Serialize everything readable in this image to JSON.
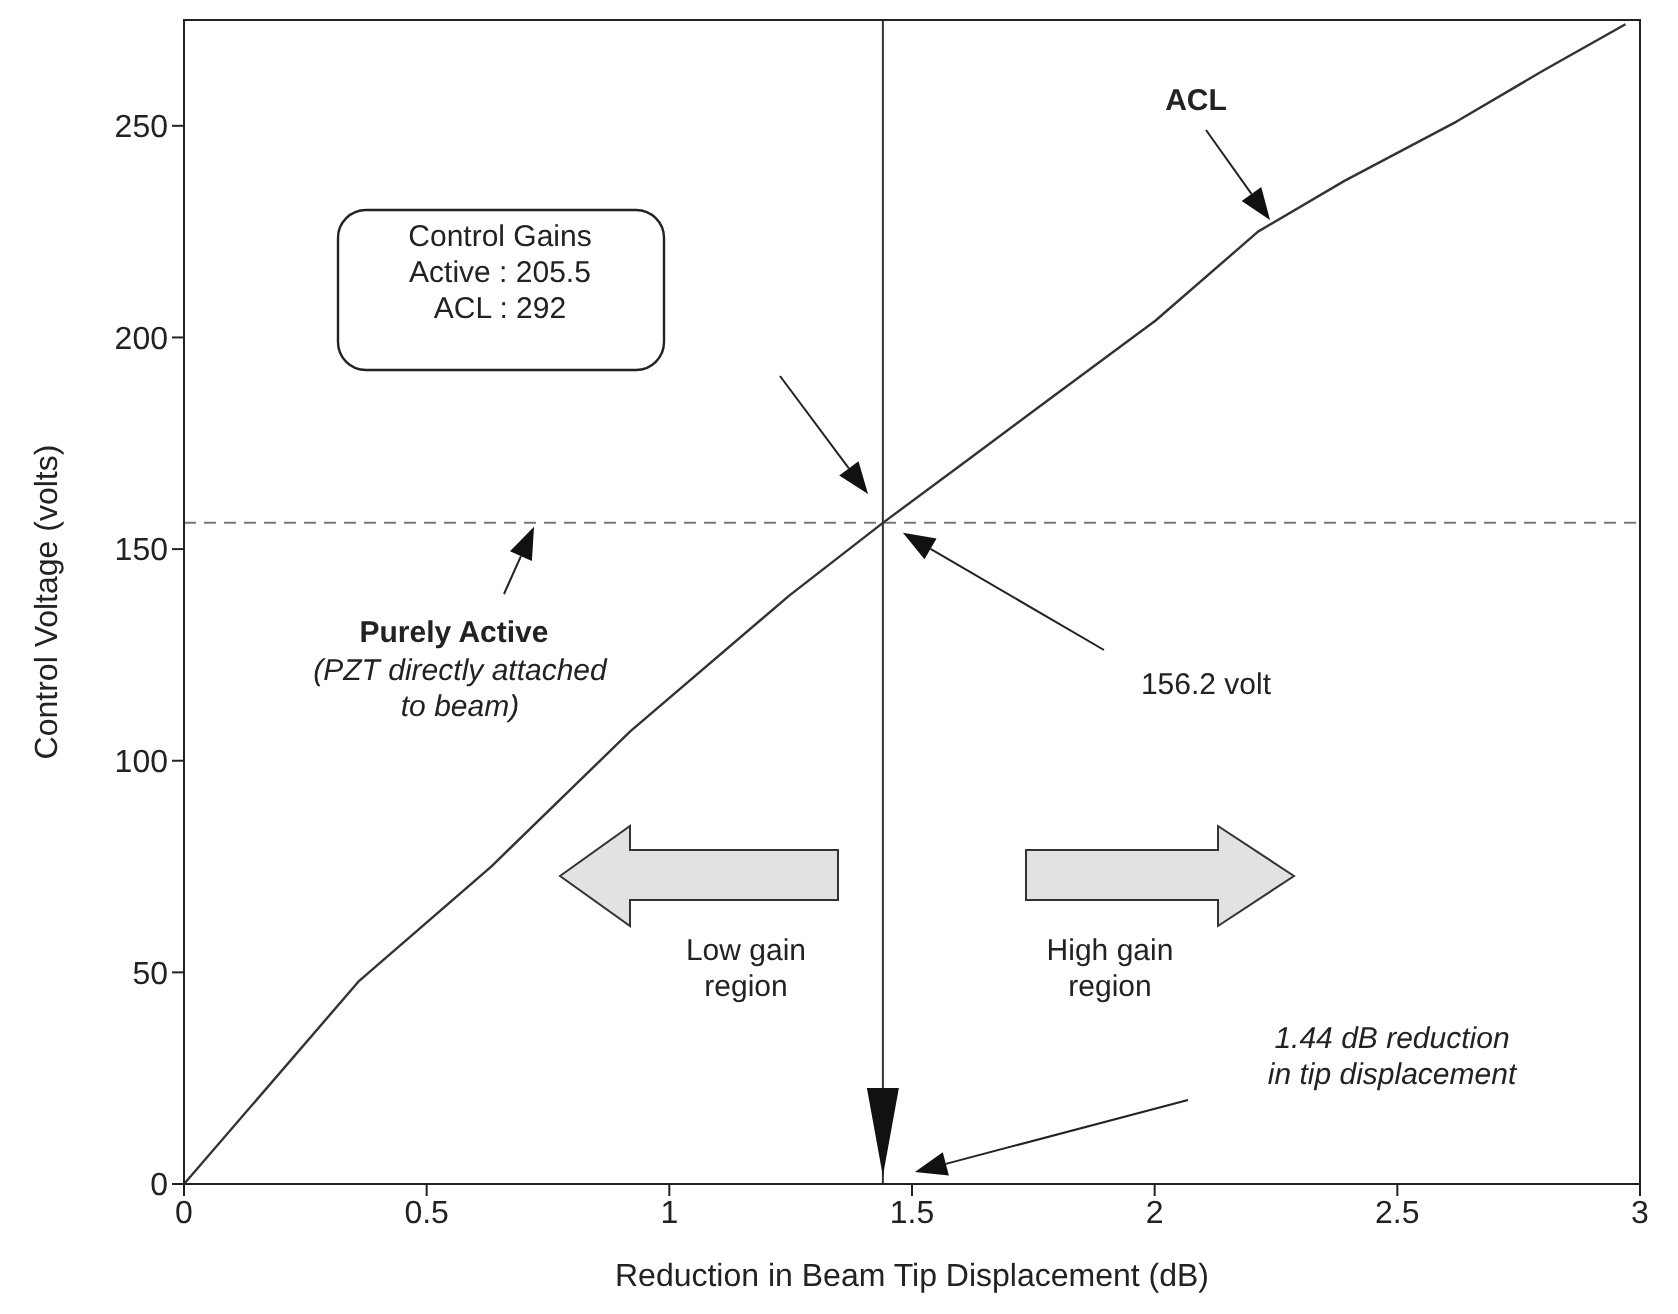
{
  "chart_data": {
    "type": "line",
    "xlabel": "Reduction in Beam Tip Displacement (dB)",
    "ylabel": "Control Voltage (volts)",
    "x": [
      0,
      0.361,
      0.633,
      0.92,
      1.247,
      1.44,
      1.614,
      1.778,
      2.002,
      2.213,
      2.391,
      2.622,
      2.8,
      2.97
    ],
    "series": [
      {
        "name": "ACL",
        "color": "#333333",
        "values": [
          0,
          48,
          75,
          107,
          139,
          156.2,
          171,
          185,
          204,
          225,
          237,
          251,
          263,
          274
        ]
      }
    ],
    "xlim": [
      0,
      3
    ],
    "xticks": [
      0,
      0.5,
      1,
      1.5,
      2,
      2.5,
      3
    ],
    "ylim": [
      0,
      275
    ],
    "yticks": [
      0,
      50,
      100,
      150,
      200,
      250
    ],
    "grid": false,
    "legend": false,
    "marker": "none",
    "line_style": "solid",
    "ref_lines": [
      {
        "axis": "y",
        "value": 156.2,
        "color": "#777777",
        "line_style": "dashed"
      },
      {
        "axis": "x",
        "value": 1.44,
        "label": null,
        "color": "#333333",
        "line_style": "solid"
      }
    ],
    "annotations": [
      "Control Gains\nActive : 205.5\nACL : 292",
      "Purely Active",
      "(PZT directly attached\nto  beam)",
      "156.2 volt",
      "Low gain\nregion",
      "High gain\nregion",
      "1.44 dB reduction\nin tip displacement"
    ]
  }
}
